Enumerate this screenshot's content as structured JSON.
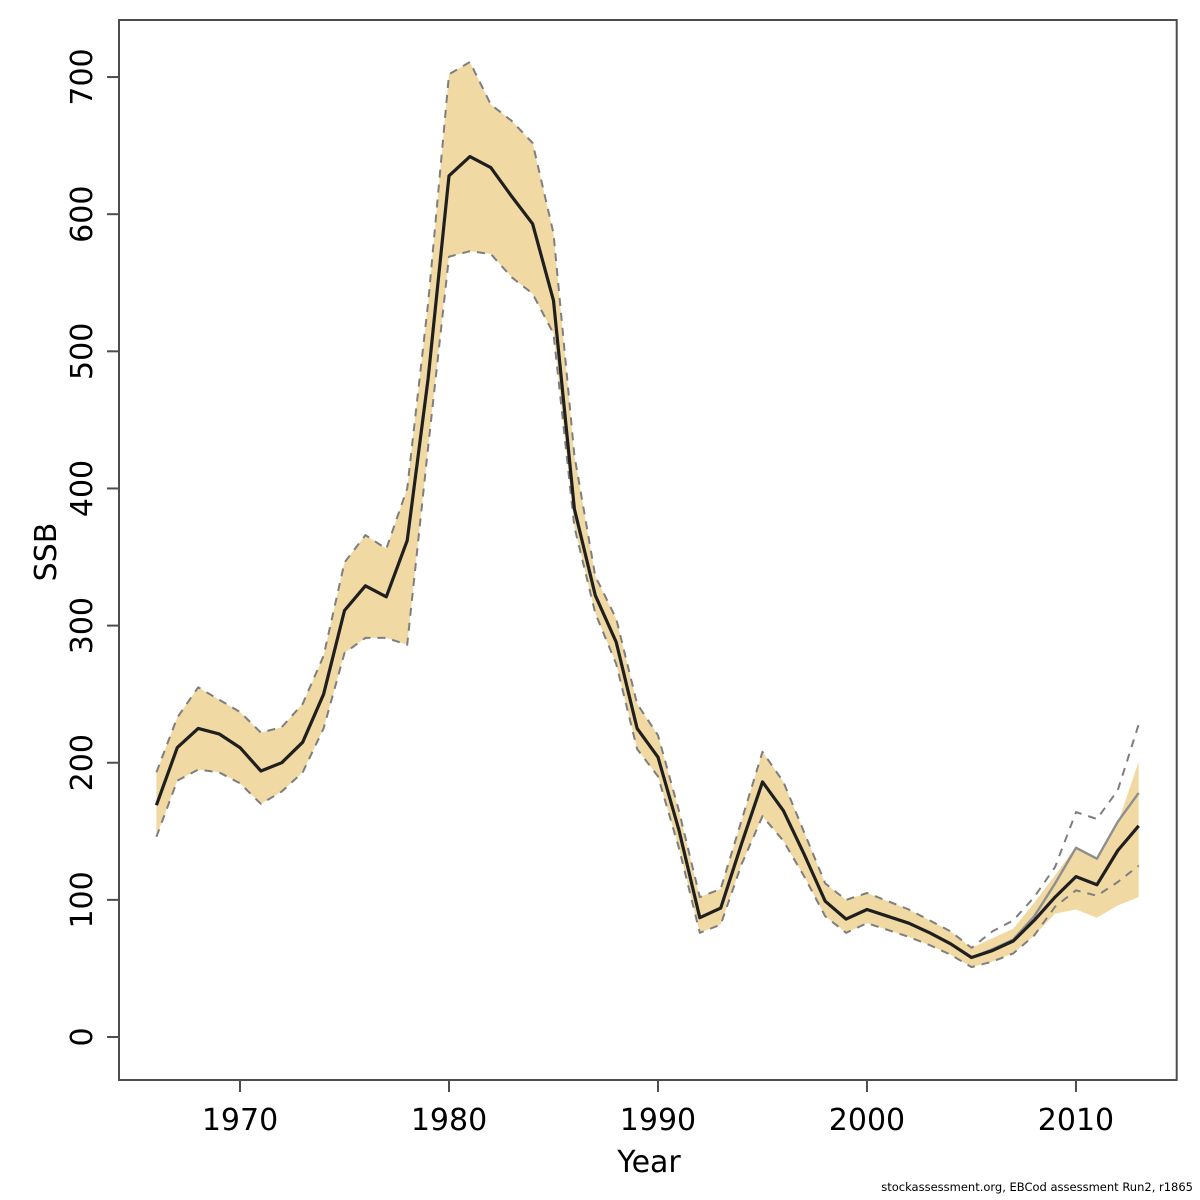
{
  "page": {
    "background": "#ffffff",
    "footer": "stockassessment.org, EBCod assessment Run2, r1865"
  },
  "frame": {
    "color": "#4d4d4d",
    "tick_length": 12
  },
  "chart_data": {
    "type": "line",
    "title": "",
    "xlabel": "Year",
    "ylabel": "SSB",
    "x_ticks": [
      1970,
      1980,
      1990,
      2000,
      2010
    ],
    "y_ticks": [
      0,
      100,
      200,
      300,
      400,
      500,
      600,
      700
    ],
    "xlim": [
      1964.21,
      2014.82
    ],
    "ylim": [
      -31.35,
      741.6
    ],
    "grid": false,
    "legend": "none",
    "years": [
      1966,
      1967,
      1968,
      1969,
      1970,
      1971,
      1972,
      1973,
      1974,
      1975,
      1976,
      1977,
      1978,
      1979,
      1980,
      1981,
      1982,
      1983,
      1984,
      1985,
      1986,
      1987,
      1988,
      1989,
      1990,
      1991,
      1992,
      1993,
      1994,
      1995,
      1996,
      1997,
      1998,
      1999,
      2000,
      2001,
      2002,
      2003,
      2004,
      2005,
      2006,
      2007,
      2008,
      2009,
      2010,
      2011,
      2012,
      2013
    ],
    "band": {
      "name": "confidence-band",
      "fill": "#f1d9a3",
      "lo": [
        146,
        187,
        195,
        193,
        185,
        170,
        179,
        193,
        225,
        280,
        291,
        291,
        286,
        430,
        569,
        573,
        571,
        554,
        542,
        513,
        372,
        309,
        272,
        210,
        190,
        138,
        76,
        82,
        126,
        161,
        143,
        117,
        88,
        76,
        83,
        78,
        73,
        67,
        60,
        51,
        55,
        61,
        74,
        90,
        93,
        87,
        96,
        102
      ],
      "hi": [
        193,
        233,
        255,
        246,
        237,
        222,
        226,
        243,
        278,
        346,
        366,
        356,
        400,
        535,
        702,
        711,
        680,
        668,
        652,
        586,
        424,
        336,
        305,
        243,
        220,
        165,
        102,
        108,
        158,
        208,
        186,
        149,
        112,
        100,
        105,
        99,
        93,
        85,
        77,
        65,
        72,
        79,
        98,
        118,
        139,
        131,
        156,
        201
      ]
    },
    "series": [
      {
        "name": "ci-lower-dashed-line",
        "color": "#7e7e7e",
        "width": 2,
        "dash": "8 7",
        "values": [
          146,
          187,
          195,
          193,
          185,
          170,
          179,
          193,
          225,
          280,
          291,
          291,
          286,
          430,
          569,
          573,
          571,
          554,
          542,
          513,
          372,
          309,
          272,
          210,
          190,
          138,
          76,
          82,
          126,
          161,
          143,
          117,
          88,
          76,
          83,
          78,
          73,
          67,
          60,
          51,
          55,
          61,
          74,
          95,
          107,
          103,
          113,
          125
        ]
      },
      {
        "name": "ci-upper-dashed-line",
        "color": "#7e7e7e",
        "width": 2,
        "dash": "8 7",
        "values": [
          193,
          233,
          255,
          246,
          237,
          222,
          226,
          243,
          278,
          346,
          366,
          356,
          400,
          535,
          702,
          711,
          680,
          668,
          652,
          586,
          424,
          336,
          305,
          243,
          220,
          165,
          102,
          108,
          158,
          208,
          186,
          149,
          112,
          100,
          105,
          99,
          93,
          85,
          77,
          65,
          77,
          85,
          102,
          124,
          164,
          159,
          180,
          228
        ]
      },
      {
        "name": "alt-run-line",
        "color": "#8e8e8e",
        "width": 2.4,
        "dash": null,
        "values": [
          null,
          null,
          null,
          null,
          null,
          null,
          null,
          null,
          null,
          null,
          null,
          null,
          null,
          null,
          null,
          null,
          null,
          null,
          null,
          null,
          null,
          null,
          null,
          null,
          null,
          null,
          null,
          null,
          null,
          null,
          null,
          null,
          null,
          null,
          null,
          null,
          null,
          null,
          null,
          58,
          64,
          71,
          88,
          112,
          138,
          130,
          157,
          178
        ]
      },
      {
        "name": "ssb-estimate-line",
        "color": "#1f1f1f",
        "width": 3.2,
        "dash": null,
        "values": [
          169,
          211,
          225,
          221,
          211,
          194,
          200,
          215,
          250,
          311,
          329,
          321,
          362,
          480,
          628,
          642,
          634,
          613,
          593,
          537,
          385,
          322,
          288,
          225,
          204,
          151,
          87,
          94,
          141,
          186,
          165,
          133,
          99,
          86,
          93,
          88,
          83,
          76,
          68,
          58,
          63,
          70,
          85,
          102,
          117,
          111,
          136,
          154
        ]
      }
    ]
  }
}
